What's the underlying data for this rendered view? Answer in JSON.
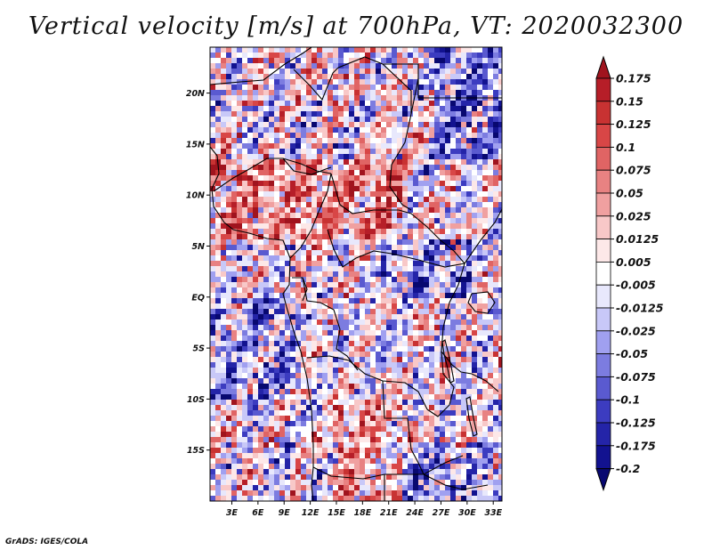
{
  "chart_data": {
    "type": "heatmap",
    "title": "Vertical velocity [m/s] at 700hPa, VT: 2020032300",
    "variable": "Vertical velocity",
    "units": "m/s",
    "level": "700hPa",
    "valid_time": "2020032300",
    "x_ticks": [
      "3E",
      "6E",
      "9E",
      "12E",
      "15E",
      "18E",
      "21E",
      "24E",
      "27E",
      "30E",
      "33E"
    ],
    "x_tick_values": [
      3,
      6,
      9,
      12,
      15,
      18,
      21,
      24,
      27,
      30,
      33
    ],
    "y_ticks": [
      "20N",
      "15N",
      "10N",
      "5N",
      "EQ",
      "5S",
      "10S",
      "15S"
    ],
    "y_tick_values": [
      20,
      15,
      10,
      5,
      0,
      -5,
      -10,
      -15
    ],
    "xlim": [
      0.5,
      34
    ],
    "ylim": [
      -20,
      24.5
    ],
    "colorbar": {
      "labels": [
        "0.175",
        "0.15",
        "0.125",
        "0.1",
        "0.075",
        "0.05",
        "0.025",
        "0.0125",
        "0.005",
        "-0.005",
        "-0.0125",
        "-0.025",
        "-0.05",
        "-0.075",
        "-0.1",
        "-0.125",
        "-0.175",
        "-0.2"
      ],
      "colors": [
        "#a0141e",
        "#b61e28",
        "#c83232",
        "#d84646",
        "#e06464",
        "#e88282",
        "#f0a0a0",
        "#f8c8c8",
        "#fde8e8",
        "#ffffff",
        "#e8e8fc",
        "#c8c8f8",
        "#a0a0f0",
        "#7c7ce0",
        "#5a5ad0",
        "#3c3cc0",
        "#2424a8",
        "#121290",
        "#080870"
      ]
    }
  },
  "credit": "GrADS: IGES/COLA"
}
